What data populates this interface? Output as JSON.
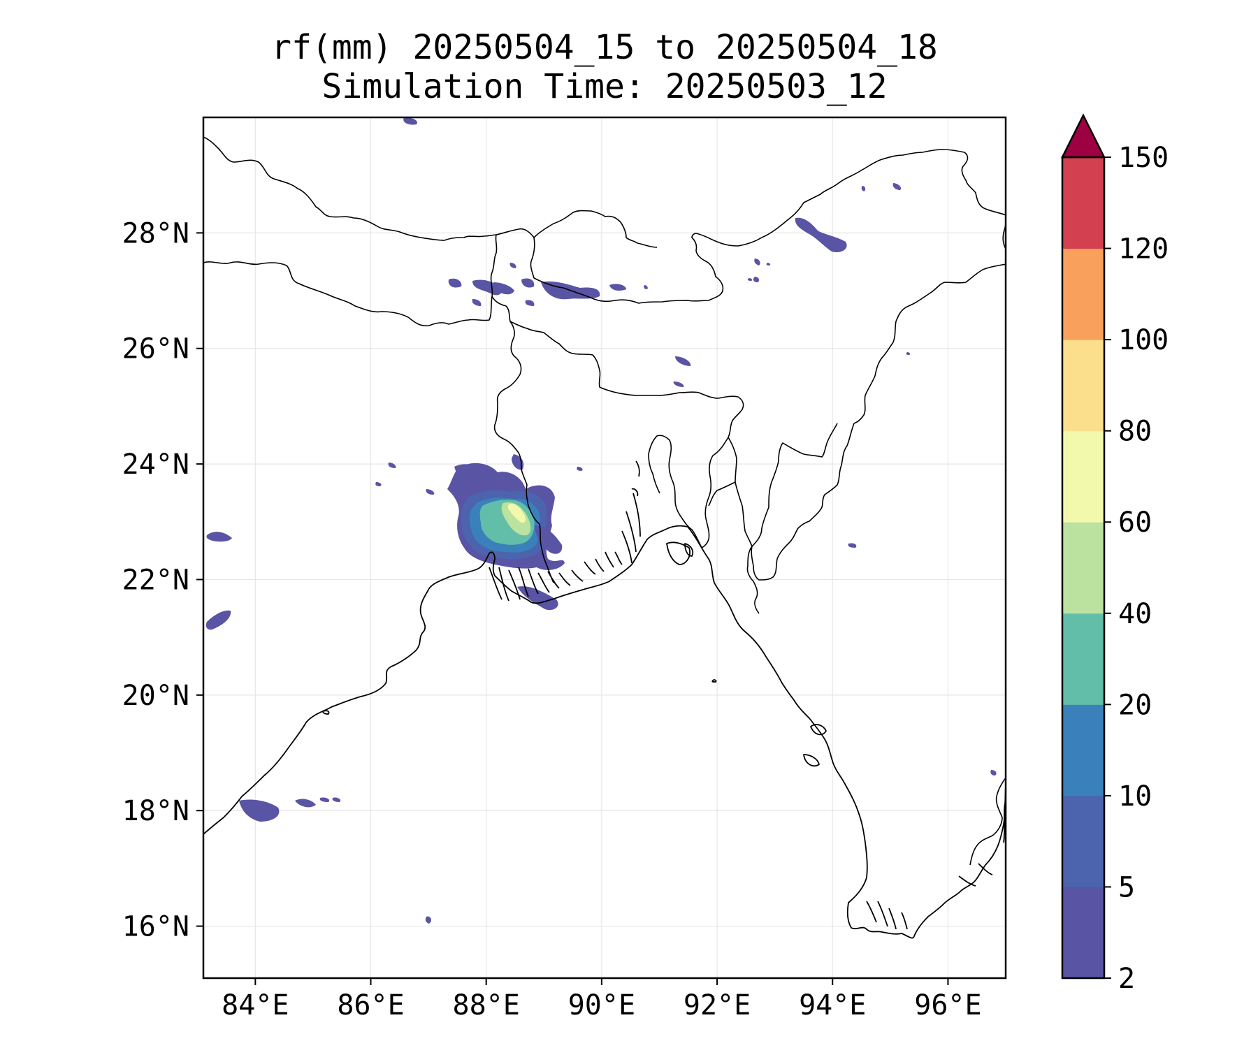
{
  "title_line1": "rf(mm) 20250504_15 to 20250504_18",
  "title_line2": "Simulation Time: 20250503_12",
  "lon_ticks": [
    "84°E",
    "86°E",
    "88°E",
    "90°E",
    "92°E",
    "94°E",
    "96°E"
  ],
  "lat_ticks": [
    "16°N",
    "18°N",
    "20°N",
    "22°N",
    "24°N",
    "26°N",
    "28°N"
  ],
  "colorbar": {
    "levels": [
      2,
      5,
      10,
      20,
      40,
      60,
      80,
      100,
      120,
      150
    ],
    "labels": [
      "2",
      "5",
      "10",
      "20",
      "40",
      "60",
      "80",
      "100",
      "120",
      "150"
    ],
    "colors": [
      "#5954a4",
      "#4c63ad",
      "#3a81bb",
      "#62bea8",
      "#bbe29f",
      "#f2f9ad",
      "#fcdf8c",
      "#f9a05c",
      "#d3404f"
    ],
    "extend_color": "#9e0142"
  },
  "chart_data": {
    "type": "heatmap",
    "title": "rf(mm) 20250504_15 to 20250504_18",
    "subtitle": "Simulation Time: 20250503_12",
    "xlim": [
      83.1,
      97.0
    ],
    "ylim": [
      15.1,
      30.0
    ],
    "x_ticks": [
      84,
      86,
      88,
      90,
      92,
      94,
      96
    ],
    "y_ticks": [
      16,
      18,
      20,
      22,
      24,
      26,
      28
    ],
    "grid": true,
    "legend": "colorbar-right",
    "rain_cells": [
      {
        "lon": 88.5,
        "lat": 22.9,
        "max_level": 60
      },
      {
        "lon": 93.9,
        "lat": 27.9,
        "max_level": 5
      },
      {
        "lon": 84.1,
        "lat": 17.9,
        "max_level": 5
      },
      {
        "lon": 83.3,
        "lat": 21.2,
        "max_level": 5
      },
      {
        "lon": 89.2,
        "lat": 26.9,
        "max_level": 5
      },
      {
        "lon": 87.6,
        "lat": 26.8,
        "max_level": 5
      }
    ]
  }
}
